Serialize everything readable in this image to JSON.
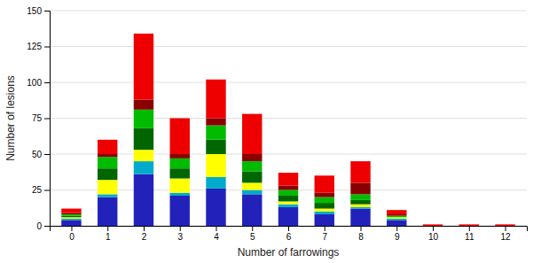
{
  "chart_data": {
    "type": "bar",
    "stacked": true,
    "xlabel": "Number of farrowings",
    "ylabel": "Number of lesions",
    "x": [
      0,
      1,
      2,
      3,
      4,
      5,
      6,
      7,
      8,
      9,
      10,
      11,
      12
    ],
    "series": [
      {
        "color": "#2222bb",
        "values": [
          4,
          20,
          36,
          21,
          26,
          22,
          13,
          8,
          12,
          4,
          0,
          0,
          0
        ]
      },
      {
        "color": "#00aacc",
        "values": [
          1,
          2,
          9,
          2,
          8,
          3,
          2,
          2,
          1,
          1,
          0,
          0,
          0
        ]
      },
      {
        "color": "#ffff00",
        "values": [
          1,
          10,
          8,
          10,
          16,
          5,
          2,
          2,
          2,
          1,
          0,
          0,
          0
        ]
      },
      {
        "color": "#006600",
        "values": [
          1,
          8,
          15,
          7,
          10,
          8,
          4,
          4,
          3,
          0,
          0,
          0,
          0
        ]
      },
      {
        "color": "#00bb00",
        "values": [
          1,
          8,
          13,
          7,
          10,
          7,
          4,
          4,
          4,
          1,
          0,
          0,
          0
        ]
      },
      {
        "color": "#880000",
        "values": [
          1,
          2,
          7,
          3,
          5,
          5,
          3,
          3,
          8,
          1,
          0,
          0,
          0
        ]
      },
      {
        "color": "#ee0000",
        "values": [
          3,
          10,
          46,
          25,
          27,
          28,
          9,
          12,
          15,
          3,
          1,
          1,
          1
        ]
      }
    ],
    "xlim": [
      -0.6,
      12.6
    ],
    "xticks": [
      0,
      1,
      2,
      3,
      4,
      5,
      6,
      7,
      8,
      9,
      10,
      11,
      12
    ],
    "ylim": [
      0,
      150
    ],
    "yticks": [
      0,
      25,
      50,
      75,
      100,
      125,
      150
    ],
    "grid": true
  }
}
